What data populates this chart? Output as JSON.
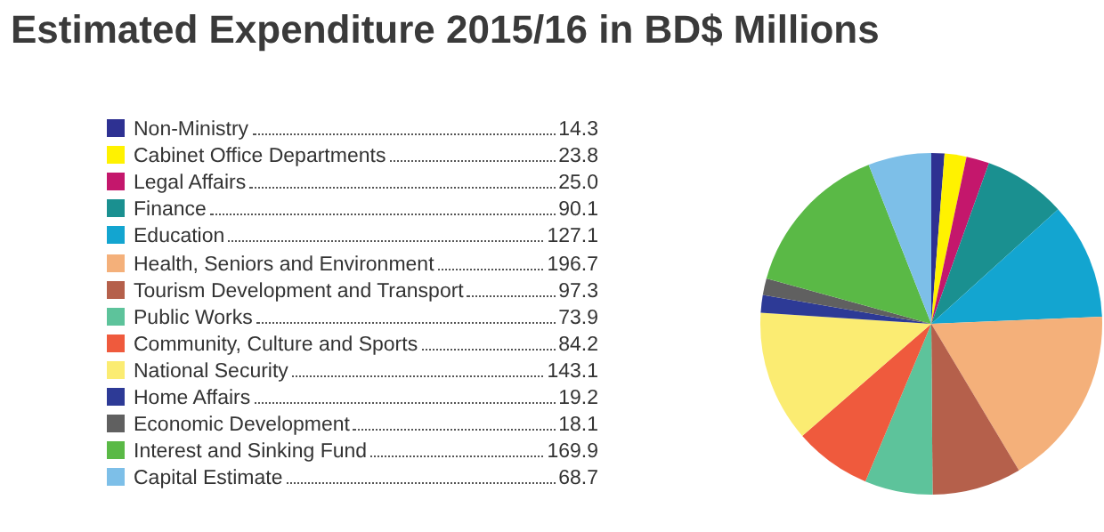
{
  "chart_data": {
    "type": "pie",
    "title": "Estimated Expenditure 2015/16 in BD$ Millions",
    "categories": [
      "Non-Ministry",
      "Cabinet Office Departments",
      "Legal Affairs",
      "Finance",
      "Education",
      "Health, Seniors and Environment",
      "Tourism Development and Transport",
      "Public Works",
      "Community, Culture and Sports",
      "National Security",
      "Home Affairs",
      "Economic Development",
      "Interest and Sinking Fund",
      "Capital Estimate"
    ],
    "values": [
      14.3,
      23.8,
      25.0,
      90.1,
      127.1,
      196.7,
      97.3,
      73.9,
      84.2,
      143.1,
      19.2,
      18.1,
      169.9,
      68.7
    ],
    "value_labels": [
      "14.3",
      "23.8",
      "25.0",
      "90.1",
      "127.1",
      "196.7",
      "97.3",
      "73.9",
      "84.2",
      "143.1",
      "19.2",
      "18.1",
      "169.9",
      "68.7"
    ],
    "colors": [
      "#2e3192",
      "#fff200",
      "#c4176c",
      "#1a9090",
      "#13a5d0",
      "#f4b07a",
      "#b5604b",
      "#5dc39b",
      "#ef5a3d",
      "#fbec72",
      "#2d3a96",
      "#606060",
      "#5ab946",
      "#7dbfe8"
    ],
    "legend": "left"
  }
}
